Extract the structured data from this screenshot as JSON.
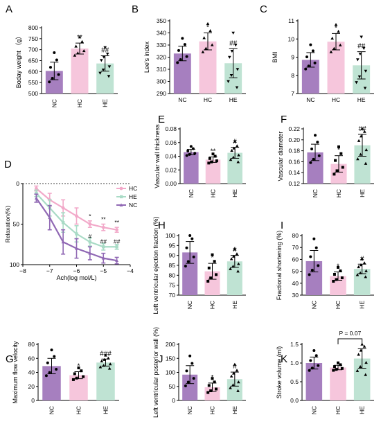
{
  "colors": {
    "NC": "#a67fbf",
    "HC": "#f6c6dc",
    "HE": "#bfe3d3",
    "NC_line": "#9068b4",
    "HC_line": "#f2a9c9",
    "HE_line": "#a9dbc6"
  },
  "chart_data": [
    {
      "id": "A",
      "type": "bar",
      "panel_label": "A",
      "ylabel": "Boday weight （g）",
      "categories": [
        "NC",
        "HC",
        "HE"
      ],
      "values": [
        603,
        705,
        637
      ],
      "errors": [
        40,
        25,
        35
      ],
      "ylim": [
        500,
        800
      ],
      "yticks": [
        500,
        550,
        600,
        650,
        700,
        750,
        800
      ],
      "markers": [
        "●",
        "▲",
        "▼"
      ],
      "signif": [
        "",
        "**",
        "##"
      ]
    },
    {
      "id": "B",
      "type": "bar",
      "panel_label": "B",
      "ylabel": "Lee's index",
      "categories": [
        "NC",
        "HC",
        "HE"
      ],
      "values": [
        323,
        333,
        315
      ],
      "errors": [
        6,
        7,
        12
      ],
      "ylim": [
        290,
        350
      ],
      "yticks": [
        290,
        300,
        310,
        320,
        330,
        340,
        350
      ],
      "markers": [
        "●",
        "▲",
        "▼"
      ],
      "signif": [
        "",
        "*",
        "##"
      ]
    },
    {
      "id": "C",
      "type": "bar",
      "panel_label": "C",
      "ylabel": "BMI",
      "categories": [
        "NC",
        "HC",
        "HE"
      ],
      "values": [
        8.85,
        9.85,
        8.55
      ],
      "errors": [
        0.4,
        0.45,
        0.75
      ],
      "ylim": [
        7,
        11
      ],
      "yticks": [
        7,
        8,
        9,
        10,
        11
      ],
      "markers": [
        "●",
        "▲",
        "▼"
      ],
      "signif": [
        "",
        "*",
        "##"
      ]
    },
    {
      "id": "D",
      "type": "line",
      "panel_label": "D",
      "xlabel": "Ach(log mol/L)",
      "ylabel": "Relaxation(%)",
      "xlim": [
        -8,
        -4
      ],
      "ylim": [
        0,
        100
      ],
      "xticks": [
        -8,
        -7,
        -6,
        -5,
        -4
      ],
      "yticks": [
        0,
        50,
        100
      ],
      "x": [
        -7.5,
        -7.0,
        -6.5,
        -6.0,
        -5.5,
        -5.0,
        -4.5
      ],
      "series": [
        {
          "name": "HC",
          "values": [
            6,
            20,
            30,
            40,
            50,
            54,
            57
          ],
          "errors": [
            3,
            8,
            10,
            10,
            4,
            4,
            3
          ]
        },
        {
          "name": "HE",
          "values": [
            12,
            30,
            48,
            62,
            72,
            78,
            78
          ],
          "errors": [
            4,
            10,
            12,
            10,
            5,
            4,
            3
          ]
        },
        {
          "name": "NC",
          "values": [
            18,
            42,
            72,
            80,
            86,
            92,
            95
          ],
          "errors": [
            5,
            15,
            15,
            12,
            8,
            6,
            4
          ]
        }
      ],
      "annotations": [
        {
          "x": -5.5,
          "text": "*"
        },
        {
          "x": -5.5,
          "text": "#"
        },
        {
          "x": -5.0,
          "text": "**"
        },
        {
          "x": -5.0,
          "text": "##"
        },
        {
          "x": -4.5,
          "text": "**"
        },
        {
          "x": -4.5,
          "text": "##"
        }
      ]
    },
    {
      "id": "E",
      "type": "bar",
      "panel_label": "E",
      "ylabel": "Vascular wall thickness",
      "categories": [
        "NC",
        "HC",
        "HE"
      ],
      "values": [
        0.046,
        0.035,
        0.045
      ],
      "errors": [
        0.004,
        0.004,
        0.008
      ],
      "ylim": [
        0,
        0.08
      ],
      "yticks": [
        0,
        0.02,
        0.04,
        0.06,
        0.08
      ],
      "markers": [
        "●",
        "■",
        "▲"
      ],
      "signif": [
        "",
        "**",
        "#"
      ]
    },
    {
      "id": "F",
      "type": "bar",
      "panel_label": "F",
      "ylabel": "Vascular diameter",
      "categories": [
        "NC",
        "HC",
        "HE"
      ],
      "values": [
        0.177,
        0.156,
        0.19
      ],
      "errors": [
        0.015,
        0.015,
        0.02
      ],
      "ylim": [
        0.12,
        0.22
      ],
      "yticks": [
        0.12,
        0.14,
        0.16,
        0.18,
        0.2,
        0.22
      ],
      "markers": [
        "●",
        "■",
        "▲"
      ],
      "signif": [
        "",
        "*",
        "##"
      ]
    },
    {
      "id": "H",
      "type": "bar",
      "panel_label": "H",
      "ylabel": "Left ventricular ejection fraction (%)",
      "categories": [
        "NC",
        "HC",
        "HE"
      ],
      "values": [
        91.5,
        82,
        87
      ],
      "errors": [
        5.5,
        4,
        3
      ],
      "ylim": [
        70,
        100
      ],
      "yticks": [
        70,
        75,
        80,
        85,
        90,
        95,
        100
      ],
      "markers": [
        "●",
        "■",
        "▲"
      ],
      "signif": [
        "",
        "*",
        "#"
      ]
    },
    {
      "id": "I",
      "type": "bar",
      "panel_label": "I",
      "ylabel": "Fractional shortening (%)",
      "categories": [
        "NC",
        "HC",
        "HE"
      ],
      "values": [
        58.5,
        46,
        52
      ],
      "errors": [
        9,
        3.5,
        4
      ],
      "ylim": [
        30,
        80
      ],
      "yticks": [
        30,
        40,
        50,
        60,
        70,
        80
      ],
      "markers": [
        "●",
        "■",
        "▲"
      ],
      "signif": [
        "",
        "*",
        "#"
      ]
    },
    {
      "id": "G",
      "type": "bar",
      "panel_label": "G",
      "ylabel": "Maximum flow velocity",
      "categories": [
        "NC",
        "HC",
        "HE"
      ],
      "values": [
        49,
        36,
        54
      ],
      "errors": [
        11,
        5,
        5
      ],
      "ylim": [
        0,
        80
      ],
      "yticks": [
        0,
        20,
        40,
        60,
        80
      ],
      "markers": [
        "●",
        "■",
        "▲"
      ],
      "signif": [
        "",
        "*",
        "###"
      ]
    },
    {
      "id": "J",
      "type": "bar",
      "panel_label": "J",
      "ylabel": "Left ventricular posterior wall (%)",
      "categories": [
        "NC",
        "HC",
        "HE"
      ],
      "values": [
        92,
        47,
        76
      ],
      "errors": [
        32,
        15,
        25
      ],
      "ylim": [
        0,
        200
      ],
      "yticks": [
        0,
        50,
        100,
        150,
        200
      ],
      "markers": [
        "●",
        "■",
        "▲"
      ],
      "signif": [
        "",
        "*",
        "#"
      ]
    },
    {
      "id": "K",
      "type": "bar",
      "panel_label": "K",
      "ylabel": "Stroke volume (ml)",
      "categories": [
        "NC",
        "HC",
        "HE"
      ],
      "values": [
        1.0,
        0.88,
        1.12
      ],
      "errors": [
        0.16,
        0.06,
        0.26
      ],
      "ylim": [
        0,
        1.5
      ],
      "yticks": [
        0,
        0.5,
        1.0,
        1.5
      ],
      "markers": [
        "●",
        "■",
        "▲"
      ],
      "signif": [
        "",
        "",
        ""
      ],
      "bracket": "P = 0.07"
    }
  ]
}
